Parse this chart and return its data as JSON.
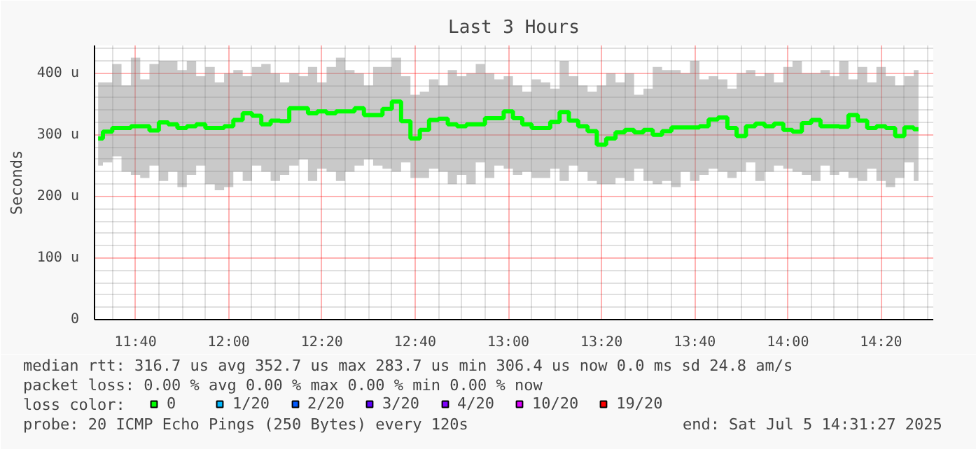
{
  "chart_data": {
    "type": "step",
    "title": "Last 3 Hours",
    "ylabel": "Seconds",
    "x": [
      11.533,
      11.567,
      11.6,
      11.633,
      11.667,
      11.7,
      11.733,
      11.767,
      11.8,
      11.833,
      11.867,
      11.9,
      11.933,
      11.967,
      12.0,
      12.033,
      12.067,
      12.1,
      12.133,
      12.167,
      12.2,
      12.233,
      12.267,
      12.3,
      12.333,
      12.367,
      12.4,
      12.433,
      12.467,
      12.5,
      12.533,
      12.567,
      12.6,
      12.633,
      12.667,
      12.7,
      12.733,
      12.767,
      12.8,
      12.833,
      12.867,
      12.9,
      12.933,
      12.967,
      13.0,
      13.033,
      13.067,
      13.1,
      13.133,
      13.167,
      13.2,
      13.233,
      13.267,
      13.3,
      13.333,
      13.367,
      13.4,
      13.433,
      13.467,
      13.5,
      13.533,
      13.567,
      13.6,
      13.633,
      13.667,
      13.7,
      13.733,
      13.767,
      13.8,
      13.833,
      13.867,
      13.9,
      13.933,
      13.967,
      14.0,
      14.033,
      14.067,
      14.1,
      14.133,
      14.167,
      14.2,
      14.233,
      14.267,
      14.3,
      14.333,
      14.367,
      14.4,
      14.433,
      14.467
    ],
    "series": [
      {
        "name": "0",
        "color": "#00ff00",
        "values": [
          294,
          305,
          311,
          311,
          314,
          314,
          307,
          320,
          317,
          311,
          314,
          317,
          311,
          311,
          314,
          324,
          335,
          331,
          317,
          323,
          322,
          343,
          343,
          335,
          338,
          335,
          338,
          338,
          343,
          332,
          332,
          342,
          354,
          322,
          294,
          308,
          324,
          326,
          317,
          314,
          317,
          317,
          327,
          327,
          338,
          327,
          317,
          311,
          311,
          321,
          337,
          323,
          314,
          306,
          284,
          294,
          304,
          308,
          304,
          308,
          300,
          306,
          312,
          312,
          312,
          314,
          325,
          328,
          311,
          298,
          314,
          318,
          314,
          318,
          308,
          305,
          319,
          324,
          314,
          314,
          313,
          332,
          323,
          311,
          314,
          311,
          298,
          312,
          309
        ],
        "lower": [
          250,
          255,
          265,
          240,
          235,
          230,
          250,
          225,
          240,
          215,
          235,
          250,
          220,
          210,
          215,
          240,
          225,
          250,
          240,
          225,
          235,
          250,
          260,
          225,
          245,
          240,
          225,
          240,
          250,
          260,
          250,
          245,
          240,
          255,
          230,
          230,
          245,
          240,
          220,
          235,
          220,
          255,
          230,
          250,
          245,
          235,
          240,
          230,
          230,
          245,
          225,
          250,
          240,
          225,
          220,
          220,
          230,
          225,
          245,
          225,
          220,
          225,
          215,
          240,
          225,
          235,
          245,
          240,
          230,
          240,
          255,
          225,
          240,
          250,
          245,
          240,
          235,
          225,
          250,
          235,
          240,
          230,
          225,
          245,
          225,
          215,
          230,
          255,
          225
        ],
        "upper": [
          385,
          385,
          415,
          380,
          425,
          390,
          415,
          420,
          420,
          405,
          420,
          395,
          410,
          385,
          400,
          405,
          395,
          410,
          415,
          400,
          385,
          400,
          395,
          410,
          385,
          410,
          425,
          405,
          400,
          380,
          410,
          410,
          425,
          395,
          365,
          370,
          390,
          380,
          405,
          395,
          400,
          415,
          400,
          390,
          395,
          380,
          370,
          390,
          385,
          375,
          420,
          395,
          380,
          370,
          380,
          400,
          385,
          400,
          365,
          375,
          410,
          405,
          405,
          400,
          420,
          390,
          395,
          390,
          375,
          400,
          405,
          395,
          400,
          385,
          410,
          420,
          400,
          400,
          405,
          395,
          420,
          390,
          410,
          385,
          410,
          395,
          380,
          395,
          405
        ]
      },
      {
        "name": "1/20",
        "color": "#00b8ff",
        "values": [
          null,
          null,
          null,
          null,
          null,
          null,
          null,
          null,
          null,
          null,
          null,
          null,
          null,
          null,
          null,
          null,
          null,
          null,
          null,
          null,
          null,
          null,
          null,
          null,
          null,
          null,
          null,
          null,
          null,
          null,
          null,
          null,
          null,
          null,
          null,
          null,
          null,
          null,
          null,
          null,
          null,
          null,
          null,
          null,
          null,
          null,
          null,
          null,
          null,
          null,
          null,
          null,
          null,
          null,
          null,
          null,
          null,
          null,
          null,
          null,
          null,
          null,
          null,
          null,
          null,
          null,
          null,
          null,
          null,
          null,
          null,
          null,
          null,
          null,
          null,
          null,
          null,
          null,
          null,
          null,
          null,
          null,
          null,
          null,
          null,
          null,
          null,
          null,
          null
        ]
      },
      {
        "name": "2/20",
        "color": "#0059ff",
        "values": [
          null,
          null,
          null,
          null,
          null,
          null,
          null,
          null,
          null,
          null,
          null,
          null,
          null,
          null,
          null,
          null,
          null,
          null,
          null,
          null,
          null,
          null,
          null,
          null,
          null,
          null,
          null,
          null,
          null,
          null,
          null,
          null,
          null,
          null,
          null,
          null,
          null,
          null,
          null,
          null,
          null,
          null,
          null,
          null,
          null,
          null,
          null,
          null,
          null,
          null,
          null,
          null,
          null,
          null,
          null,
          null,
          null,
          null,
          null,
          null,
          null,
          null,
          null,
          null,
          null,
          null,
          null,
          null,
          null,
          null,
          null,
          null,
          null,
          null,
          null,
          null,
          null,
          null,
          null,
          null,
          null,
          null,
          null,
          null,
          null,
          null,
          null,
          null,
          null
        ]
      },
      {
        "name": "3/20",
        "color": "#5e00ff",
        "values": [
          null,
          null,
          null,
          null,
          null,
          null,
          null,
          null,
          null,
          null,
          null,
          null,
          null,
          null,
          null,
          null,
          null,
          null,
          null,
          null,
          null,
          null,
          null,
          null,
          null,
          null,
          null,
          null,
          null,
          null,
          null,
          null,
          null,
          null,
          null,
          null,
          null,
          null,
          null,
          null,
          null,
          null,
          null,
          null,
          null,
          null,
          null,
          null,
          null,
          null,
          null,
          null,
          null,
          null,
          null,
          null,
          null,
          null,
          null,
          null,
          null,
          null,
          null,
          null,
          null,
          null,
          null,
          null,
          null,
          null,
          null,
          null,
          null,
          null,
          null,
          null,
          null,
          null,
          null,
          null,
          null,
          null,
          null,
          null,
          null,
          null,
          null,
          null,
          null
        ]
      },
      {
        "name": "4/20",
        "color": "#7e00ff",
        "values": [
          null,
          null,
          null,
          null,
          null,
          null,
          null,
          null,
          null,
          null,
          null,
          null,
          null,
          null,
          null,
          null,
          null,
          null,
          null,
          null,
          null,
          null,
          null,
          null,
          null,
          null,
          null,
          null,
          null,
          null,
          null,
          null,
          null,
          null,
          null,
          null,
          null,
          null,
          null,
          null,
          null,
          null,
          null,
          null,
          null,
          null,
          null,
          null,
          null,
          null,
          null,
          null,
          null,
          null,
          null,
          null,
          null,
          null,
          null,
          null,
          null,
          null,
          null,
          null,
          null,
          null,
          null,
          null,
          null,
          null,
          null,
          null,
          null,
          null,
          null,
          null,
          null,
          null,
          null,
          null,
          null,
          null,
          null,
          null,
          null,
          null,
          null,
          null,
          null
        ]
      },
      {
        "name": "10/20",
        "color": "#dd00ff",
        "values": [
          null,
          null,
          null,
          null,
          null,
          null,
          null,
          null,
          null,
          null,
          null,
          null,
          null,
          null,
          null,
          null,
          null,
          null,
          null,
          null,
          null,
          null,
          null,
          null,
          null,
          null,
          null,
          null,
          null,
          null,
          null,
          null,
          null,
          null,
          null,
          null,
          null,
          null,
          null,
          null,
          null,
          null,
          null,
          null,
          null,
          null,
          null,
          null,
          null,
          null,
          null,
          null,
          null,
          null,
          null,
          null,
          null,
          null,
          null,
          null,
          null,
          null,
          null,
          null,
          null,
          null,
          null,
          null,
          null,
          null,
          null,
          null,
          null,
          null,
          null,
          null,
          null,
          null,
          null,
          null,
          null,
          null,
          null,
          null,
          null,
          null,
          null,
          null,
          null
        ]
      },
      {
        "name": "19/20",
        "color": "#ff0000",
        "values": [
          null,
          null,
          null,
          null,
          null,
          null,
          null,
          null,
          null,
          null,
          null,
          null,
          null,
          null,
          null,
          null,
          null,
          null,
          null,
          null,
          null,
          null,
          null,
          null,
          null,
          null,
          null,
          null,
          null,
          null,
          null,
          null,
          null,
          null,
          null,
          null,
          null,
          null,
          null,
          null,
          null,
          null,
          null,
          null,
          null,
          null,
          null,
          null,
          null,
          null,
          null,
          null,
          null,
          null,
          null,
          null,
          null,
          null,
          null,
          null,
          null,
          null,
          null,
          null,
          null,
          null,
          null,
          null,
          null,
          null,
          null,
          null,
          null,
          null,
          null,
          null,
          null,
          null,
          null,
          null,
          null,
          null,
          null,
          null,
          null,
          null,
          null,
          null,
          null
        ]
      }
    ],
    "legend": "bottom",
    "legend_title": "loss color:",
    "xlim": [
      11.52,
      14.52
    ],
    "xticks": [
      {
        "value": 11.6667,
        "label": "11:40"
      },
      {
        "value": 12.0,
        "label": "12:00"
      },
      {
        "value": 12.3333,
        "label": "12:20"
      },
      {
        "value": 12.6667,
        "label": "12:40"
      },
      {
        "value": 13.0,
        "label": "13:00"
      },
      {
        "value": 13.3333,
        "label": "13:20"
      },
      {
        "value": 13.6667,
        "label": "13:40"
      },
      {
        "value": 14.0,
        "label": "14:00"
      },
      {
        "value": 14.3333,
        "label": "14:20"
      }
    ],
    "ylim": [
      0,
      445
    ],
    "yticks": [
      0,
      {
        "value": 100,
        "label": "100 u"
      },
      {
        "value": 200,
        "label": "200 u"
      },
      {
        "value": 300,
        "label": "300 u"
      },
      {
        "value": 400,
        "label": "400 u"
      }
    ],
    "grid": true,
    "marker": "none",
    "annotations": [
      "median rtt:  316.7 us avg  352.7 us max  283.7 us min  306.4 us now  0.0 ms sd  24.8   am/s",
      "packet loss: 0.00 % avg  0.00 % max  0.00 % min  0.00 % now",
      "probe:       20 ICMP Echo Pings (250 Bytes) every 120s",
      "end: Sat Jul  5 14:31:27 2025"
    ]
  }
}
